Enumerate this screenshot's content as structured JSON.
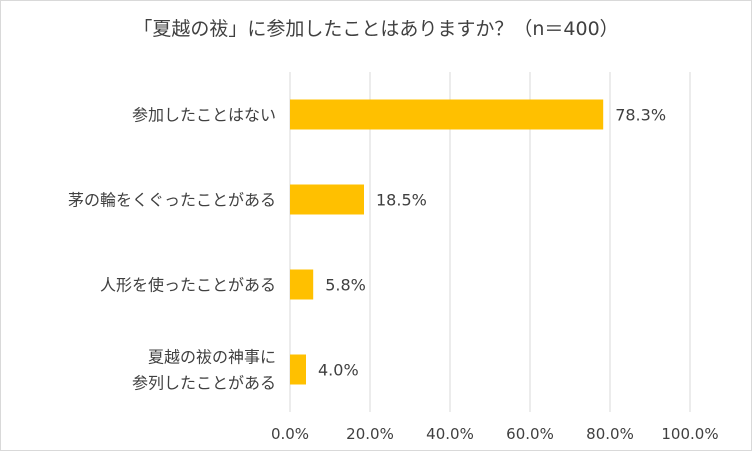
{
  "chart_data": {
    "type": "bar",
    "orientation": "horizontal",
    "title": "「夏越の祓」に参加したことはありますか？（n＝400）",
    "categories": [
      [
        "参加したことはない"
      ],
      [
        "茅の輪をくぐったことがある"
      ],
      [
        "人形を使ったことがある"
      ],
      [
        "夏越の祓の神事に",
        "参列したことがある"
      ]
    ],
    "values": [
      78.3,
      18.5,
      5.8,
      4.0
    ],
    "value_labels": [
      "78.3%",
      "18.5%",
      "5.8%",
      "4.0%"
    ],
    "xlim": [
      0,
      100
    ],
    "xticks": [
      "0.0%",
      "20.0%",
      "40.0%",
      "60.0%",
      "80.0%",
      "100.0%"
    ],
    "grid": "vertical",
    "legend": "none",
    "bar_color": "#ffc000",
    "grid_color": "#d9d9d9"
  }
}
